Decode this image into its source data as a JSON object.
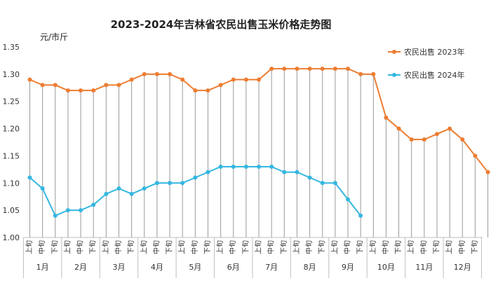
{
  "chart_data": {
    "type": "line",
    "title": "2023-2024年吉林省农民出售玉米价格走势图",
    "ylabel": "元/市斤",
    "ylim": [
      1.0,
      1.35
    ],
    "yticks": [
      "1.00",
      "1.05",
      "1.10",
      "1.15",
      "1.20",
      "1.25",
      "1.30",
      "1.35"
    ],
    "period_labels": [
      "上旬",
      "中旬",
      "下旬"
    ],
    "months": [
      "1月",
      "2月",
      "3月",
      "4月",
      "5月",
      "6月",
      "7月",
      "8月",
      "9月",
      "10月",
      "11月",
      "12月"
    ],
    "legend_position": "top-right",
    "grid": "vertical drop lines",
    "series": [
      {
        "name": "农民出售 2023年",
        "color": "#ED7D31",
        "values": [
          1.29,
          1.28,
          1.28,
          1.27,
          1.27,
          1.27,
          1.28,
          1.28,
          1.29,
          1.3,
          1.3,
          1.3,
          1.29,
          1.27,
          1.27,
          1.28,
          1.29,
          1.29,
          1.29,
          1.31,
          1.31,
          1.31,
          1.31,
          1.31,
          1.31,
          1.31,
          1.3,
          1.3,
          1.22,
          1.2,
          1.18,
          1.18,
          1.19,
          1.2,
          1.18,
          1.15,
          1.12
        ]
      },
      {
        "name": "农民出售 2024年",
        "color": "#34B7E1",
        "values": [
          1.11,
          1.09,
          1.04,
          1.05,
          1.05,
          1.06,
          1.08,
          1.09,
          1.08,
          1.09,
          1.1,
          1.1,
          1.1,
          1.11,
          1.12,
          1.13,
          1.13,
          1.13,
          1.13,
          1.13,
          1.12,
          1.12,
          1.11,
          1.1,
          1.1,
          1.07,
          1.04
        ]
      }
    ]
  }
}
